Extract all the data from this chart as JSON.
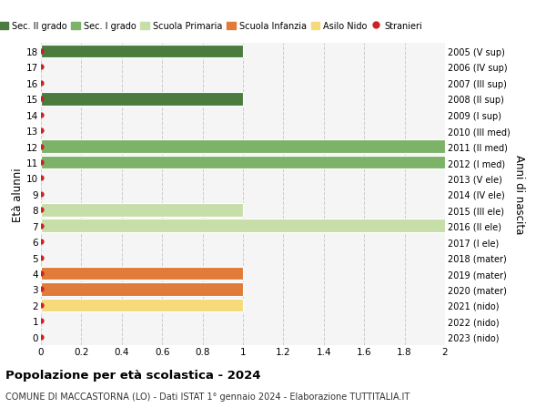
{
  "ages": [
    0,
    1,
    2,
    3,
    4,
    5,
    6,
    7,
    8,
    9,
    10,
    11,
    12,
    13,
    14,
    15,
    16,
    17,
    18
  ],
  "right_labels": [
    "2023 (nido)",
    "2022 (nido)",
    "2021 (nido)",
    "2020 (mater)",
    "2019 (mater)",
    "2018 (mater)",
    "2017 (I ele)",
    "2016 (II ele)",
    "2015 (III ele)",
    "2014 (IV ele)",
    "2013 (V ele)",
    "2012 (I med)",
    "2011 (II med)",
    "2010 (III med)",
    "2009 (I sup)",
    "2008 (II sup)",
    "2007 (III sup)",
    "2006 (IV sup)",
    "2005 (V sup)"
  ],
  "bars": [
    {
      "age": 18,
      "value": 1.0,
      "color": "#4a7c3f"
    },
    {
      "age": 15,
      "value": 1.0,
      "color": "#4a7c3f"
    },
    {
      "age": 12,
      "value": 2.0,
      "color": "#7db368"
    },
    {
      "age": 11,
      "value": 2.0,
      "color": "#7db368"
    },
    {
      "age": 8,
      "value": 1.0,
      "color": "#c8dea8"
    },
    {
      "age": 7,
      "value": 2.0,
      "color": "#c8dea8"
    },
    {
      "age": 4,
      "value": 1.0,
      "color": "#e07b39"
    },
    {
      "age": 3,
      "value": 1.0,
      "color": "#e07b39"
    },
    {
      "age": 2,
      "value": 1.0,
      "color": "#f5d97a"
    }
  ],
  "stranieri_color": "#cc2222",
  "stranieri_dot_ages": [
    0,
    1,
    2,
    3,
    4,
    5,
    6,
    7,
    8,
    9,
    10,
    11,
    12,
    13,
    14,
    15,
    16,
    17,
    18
  ],
  "xlim": [
    0,
    2.0
  ],
  "xticks": [
    0,
    0.2,
    0.4,
    0.6,
    0.8,
    1.0,
    1.2,
    1.4,
    1.6,
    1.8,
    2.0
  ],
  "ylabel_left": "Età alunni",
  "ylabel_right": "Anni di nascita",
  "title": "Popolazione per età scolastica - 2024",
  "subtitle": "COMUNE DI MACCASTORNA (LO) - Dati ISTAT 1° gennaio 2024 - Elaborazione TUTTITALIA.IT",
  "legend_entries": [
    {
      "label": "Sec. II grado",
      "color": "#4a7c3f",
      "type": "patch"
    },
    {
      "label": "Sec. I grado",
      "color": "#7db368",
      "type": "patch"
    },
    {
      "label": "Scuola Primaria",
      "color": "#c8dea8",
      "type": "patch"
    },
    {
      "label": "Scuola Infanzia",
      "color": "#e07b39",
      "type": "patch"
    },
    {
      "label": "Asilo Nido",
      "color": "#f5d97a",
      "type": "patch"
    },
    {
      "label": "Stranieri",
      "color": "#cc2222",
      "type": "circle"
    }
  ],
  "background_color": "#ffffff",
  "plot_bg_color": "#f5f5f5",
  "grid_color": "#cccccc",
  "bar_height": 0.85,
  "ylim_low": -0.5,
  "ylim_high": 18.5
}
